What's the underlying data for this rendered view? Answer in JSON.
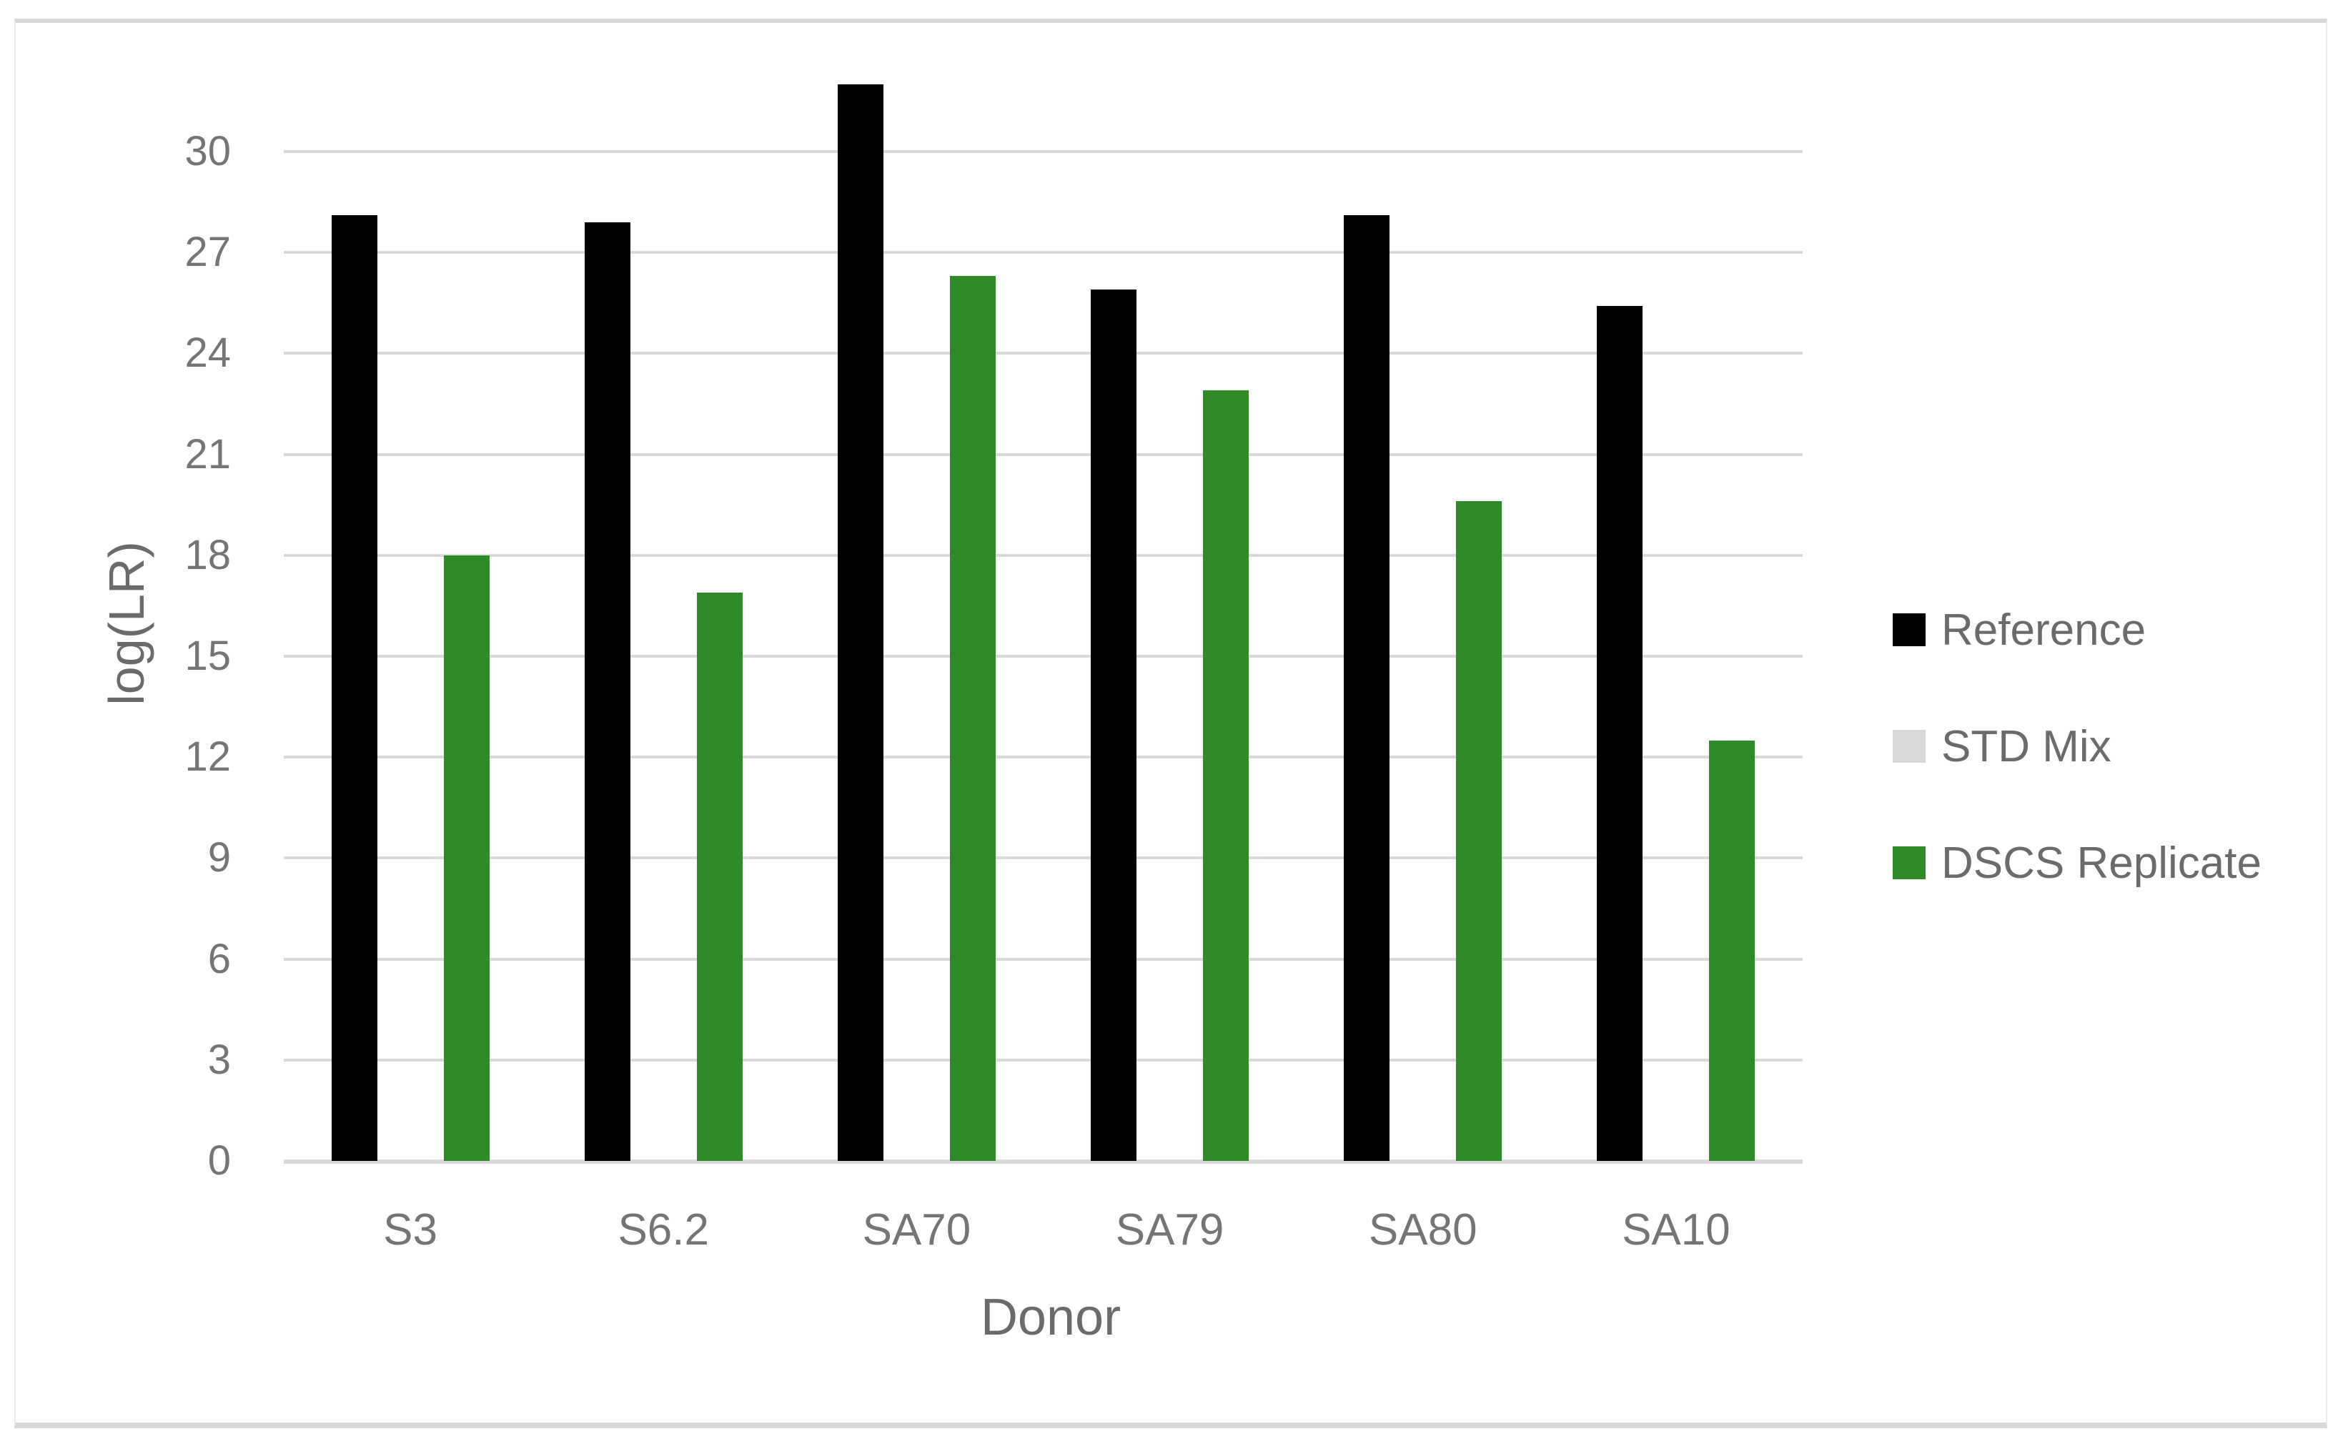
{
  "figure": {
    "title": "",
    "background_color": "#ffffff",
    "frame_border_color": "#d9d9d9",
    "grid_color": "#d9d9d9",
    "axis_line_color": "#d9d9d9",
    "tick_label_color": "#757575",
    "axis_title_color": "#6b6b6b"
  },
  "legend": {
    "items": [
      {
        "label": "Reference",
        "color": "#000000",
        "icon": "square-swatch"
      },
      {
        "label": "STD Mix",
        "color": "#d9d9d9",
        "icon": "square-swatch"
      },
      {
        "label": "DSCS Replicate",
        "color": "#2e8b28",
        "icon": "square-swatch"
      }
    ]
  },
  "chart_data": {
    "type": "bar",
    "categories": [
      "S3",
      "S6.2",
      "SA70",
      "SA79",
      "SA80",
      "SA10"
    ],
    "series": [
      {
        "name": "Reference",
        "color": "#000000",
        "values": [
          28.1,
          27.9,
          32.0,
          25.9,
          28.1,
          25.4
        ]
      },
      {
        "name": "STD Mix",
        "color": "#d9d9d9",
        "values": [
          0,
          0,
          0,
          0,
          0,
          0
        ]
      },
      {
        "name": "DSCS Replicate",
        "color": "#2e8b28",
        "values": [
          18.0,
          16.9,
          26.3,
          22.9,
          19.6,
          12.5
        ]
      }
    ],
    "title": "",
    "xlabel": "Donor",
    "ylabel": "log(LR)",
    "y_ticks": [
      0,
      3,
      6,
      9,
      12,
      15,
      18,
      21,
      24,
      27,
      30
    ],
    "ylim": [
      0,
      32.4
    ],
    "grid": true,
    "legend_position": "right",
    "bar_layout": "clustered"
  }
}
